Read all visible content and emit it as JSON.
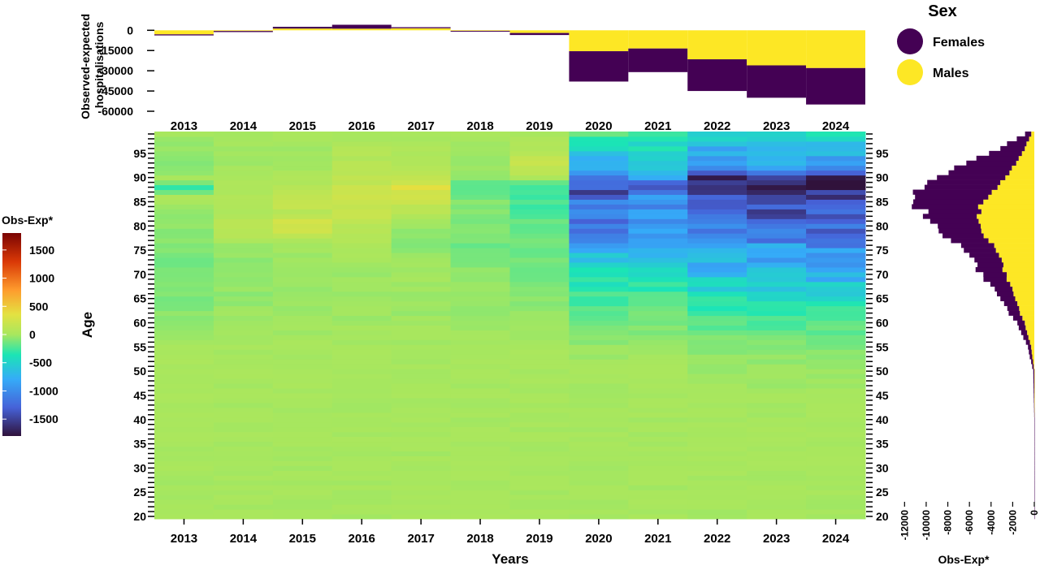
{
  "chart_data": [
    {
      "id": "top-bar",
      "type": "bar",
      "stacked": true,
      "ylabel": "Observed-expected\nhospitalisations",
      "y_ticks": [
        0,
        -15000,
        -30000,
        -45000,
        -60000
      ],
      "ylim": [
        -60000,
        5000
      ],
      "categories": [
        "2013",
        "2014",
        "2015",
        "2016",
        "2017",
        "2018",
        "2019",
        "2020",
        "2021",
        "2022",
        "2023",
        "2024"
      ],
      "series": [
        {
          "name": "Males",
          "color": "#FDE725",
          "values": [
            -3000,
            -500,
            1300,
            1200,
            1500,
            -400,
            -2000,
            -15500,
            -13500,
            -21500,
            -26000,
            -28000
          ]
        },
        {
          "name": "Females",
          "color": "#440154",
          "values": [
            -800,
            -800,
            1300,
            2900,
            800,
            -600,
            -1500,
            -22500,
            -17500,
            -23500,
            -24000,
            -27000
          ]
        }
      ]
    },
    {
      "id": "heatmap",
      "type": "heatmap",
      "xlabel": "Years",
      "ylabel": "Age",
      "x": [
        "2013",
        "2014",
        "2015",
        "2016",
        "2017",
        "2018",
        "2019",
        "2020",
        "2021",
        "2022",
        "2023",
        "2024"
      ],
      "y_range": [
        20,
        99
      ],
      "y_ticks": [
        20,
        25,
        30,
        35,
        40,
        45,
        50,
        55,
        60,
        65,
        70,
        75,
        80,
        85,
        90,
        95
      ],
      "note_values": "cell values are (year, age) -> observed-expected hospitalisations, generated in script from the key-age profile below",
      "profile_ages": [
        20,
        40,
        50,
        55,
        60,
        65,
        68,
        72,
        76,
        80,
        83,
        86,
        88,
        90,
        93,
        99
      ],
      "profile_by_year": {
        "2013": [
          0,
          0,
          20,
          0,
          -50,
          -100,
          -80,
          -120,
          -80,
          -60,
          -40,
          50,
          -300,
          0,
          -120,
          0
        ],
        "2014": [
          0,
          0,
          0,
          0,
          -20,
          -60,
          -60,
          -60,
          -30,
          150,
          20,
          60,
          40,
          30,
          -40,
          0
        ],
        "2015": [
          0,
          0,
          0,
          0,
          -30,
          -40,
          -40,
          -40,
          -20,
          260,
          120,
          150,
          60,
          40,
          -20,
          0
        ],
        "2016": [
          0,
          0,
          0,
          0,
          -20,
          -40,
          -30,
          -20,
          30,
          120,
          180,
          180,
          220,
          120,
          90,
          0
        ],
        "2017": [
          0,
          0,
          0,
          0,
          -20,
          -40,
          -20,
          -10,
          -80,
          -40,
          120,
          200,
          320,
          120,
          80,
          0
        ],
        "2018": [
          0,
          0,
          0,
          0,
          -20,
          -60,
          -60,
          -80,
          -150,
          -120,
          -80,
          -120,
          -250,
          -50,
          -30,
          0
        ],
        "2019": [
          0,
          0,
          0,
          0,
          -30,
          -80,
          -120,
          -150,
          -150,
          -150,
          -200,
          -300,
          -350,
          50,
          150,
          0
        ],
        "2020": [
          0,
          0,
          0,
          -40,
          -150,
          -250,
          -350,
          -500,
          -800,
          -1050,
          -1100,
          -1250,
          -1450,
          -1400,
          -700,
          -200
        ],
        "2021": [
          0,
          0,
          0,
          -30,
          -120,
          -200,
          -350,
          -500,
          -700,
          -850,
          -900,
          -1050,
          -1200,
          -950,
          -600,
          -300
        ],
        "2022": [
          0,
          0,
          -30,
          -80,
          -200,
          -350,
          -550,
          -700,
          -850,
          -1050,
          -1250,
          -1450,
          -1650,
          -1600,
          -900,
          -500
        ],
        "2023": [
          0,
          0,
          -30,
          -80,
          -230,
          -420,
          -600,
          -800,
          -950,
          -1150,
          -1350,
          -1650,
          -1750,
          -1400,
          -800,
          -400
        ],
        "2024": [
          0,
          0,
          -30,
          -90,
          -230,
          -420,
          -600,
          -850,
          -1050,
          -1250,
          -1400,
          -1600,
          -1750,
          -1550,
          -900,
          -400
        ]
      }
    },
    {
      "id": "side-bar",
      "type": "bar",
      "orientation": "horizontal",
      "stacked": true,
      "xlabel": "Obs-Exp*",
      "x_ticks": [
        -12000,
        -10000,
        -8000,
        -6000,
        -4000,
        -2000,
        0
      ],
      "xlim": [
        -13000,
        0
      ],
      "y_range": [
        20,
        99
      ],
      "y_ticks": [
        20,
        25,
        30,
        35,
        40,
        45,
        50,
        55,
        60,
        65,
        70,
        75,
        80,
        85,
        90,
        95
      ],
      "profile_ages": [
        20,
        30,
        40,
        50,
        55,
        60,
        65,
        70,
        75,
        80,
        83,
        85,
        87,
        90,
        93,
        96,
        99
      ],
      "males_profile": [
        0,
        0,
        0,
        0,
        -300,
        -900,
        -1800,
        -2600,
        -3600,
        -5000,
        -5200,
        -4800,
        -4000,
        -2800,
        -1600,
        -900,
        -300
      ],
      "females_profile": [
        0,
        0,
        0,
        -100,
        -300,
        -700,
        -1400,
        -2200,
        -3000,
        -4000,
        -5200,
        -6600,
        -7400,
        -6600,
        -4400,
        -2300,
        -600
      ],
      "series": [
        {
          "name": "Males",
          "color": "#FDE725"
        },
        {
          "name": "Females",
          "color": "#440154"
        }
      ]
    }
  ],
  "colorbar": {
    "title": "Obs-Exp*",
    "ticks": [
      1500,
      1000,
      500,
      0,
      -500,
      -1000,
      -1500
    ],
    "range": [
      -1800,
      1800
    ]
  },
  "legend": {
    "title": "Sex",
    "items": [
      {
        "label": "Females",
        "color": "#440154"
      },
      {
        "label": "Males",
        "color": "#FDE725"
      }
    ]
  }
}
